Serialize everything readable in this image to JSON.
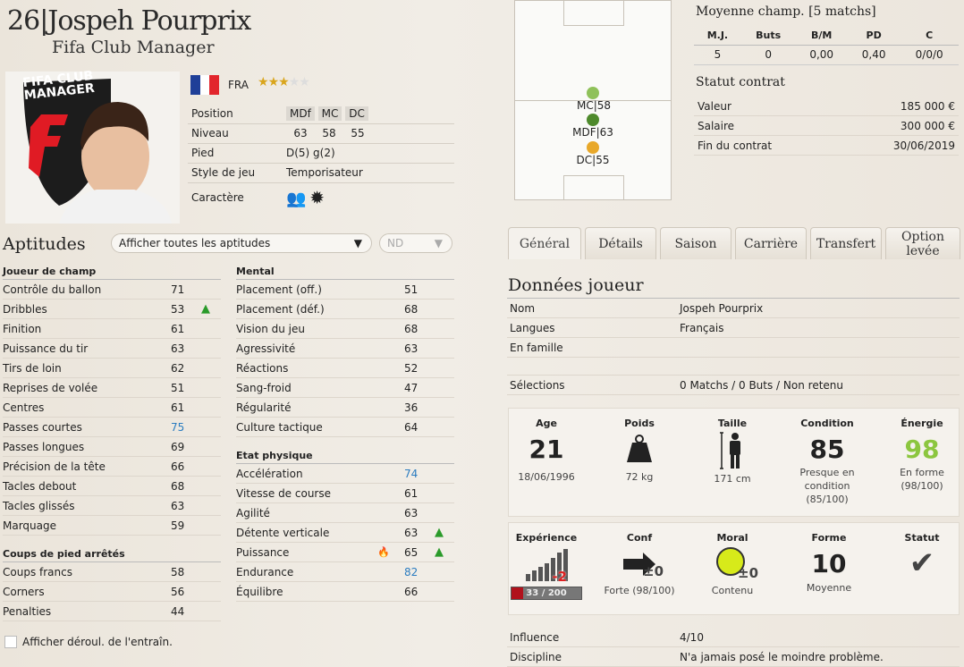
{
  "player": {
    "number": "26",
    "separator": "|",
    "name": "Jospeh Pourprix",
    "club": "Fifa Club Manager",
    "country": "FRA",
    "stars": 3,
    "stars_max": 5,
    "logo_text": [
      "FIFA CLUB",
      "MANAGER"
    ]
  },
  "info": {
    "position_label": "Position",
    "positions": [
      "MDf",
      "MC",
      "DC"
    ],
    "level_label": "Niveau",
    "levels": [
      "63",
      "58",
      "55"
    ],
    "foot_label": "Pied",
    "foot": "D(5) g(2)",
    "style_label": "Style de jeu",
    "style": "Temporisateur",
    "character_label": "Caractère"
  },
  "pitch": {
    "markers": [
      {
        "label": "MC|58",
        "color": "#8fc15a"
      },
      {
        "label": "MDF|63",
        "color": "#4e8a2c"
      },
      {
        "label": "DC|55",
        "color": "#e8a82a"
      }
    ]
  },
  "avg": {
    "title": "Moyenne champ. [5 matchs]",
    "headers": [
      "M.J.",
      "Buts",
      "B/M",
      "PD",
      "C"
    ],
    "values": [
      "5",
      "0",
      "0,00",
      "0,40",
      "0/0/0"
    ]
  },
  "contract": {
    "title": "Statut contrat",
    "rows": [
      {
        "label": "Valeur",
        "value": "185 000 €"
      },
      {
        "label": "Salaire",
        "value": "300 000 €"
      },
      {
        "label": "Fin du contrat",
        "value": "30/06/2019"
      }
    ]
  },
  "aptitudes": {
    "title": "Aptitudes",
    "filter": "Afficher toutes les aptitudes",
    "filter2": "ND",
    "toggle_label": "Afficher déroul. de l'entraîn."
  },
  "field_player": {
    "title": "Joueur de champ",
    "items": [
      {
        "label": "Contrôle du ballon",
        "value": "71"
      },
      {
        "label": "Dribbles",
        "value": "53",
        "arrow": "▲"
      },
      {
        "label": "Finition",
        "value": "61"
      },
      {
        "label": "Puissance du tir",
        "value": "63"
      },
      {
        "label": "Tirs de loin",
        "value": "62"
      },
      {
        "label": "Reprises de volée",
        "value": "51"
      },
      {
        "label": "Centres",
        "value": "61"
      },
      {
        "label": "Passes courtes",
        "value": "75",
        "hl": true
      },
      {
        "label": "Passes longues",
        "value": "69"
      },
      {
        "label": "Précision de la tête",
        "value": "66"
      },
      {
        "label": "Tacles debout",
        "value": "68"
      },
      {
        "label": "Tacles glissés",
        "value": "63"
      },
      {
        "label": "Marquage",
        "value": "59"
      }
    ]
  },
  "set_pieces": {
    "title": "Coups de pied arrêtés",
    "items": [
      {
        "label": "Coups francs",
        "value": "58"
      },
      {
        "label": "Corners",
        "value": "56"
      },
      {
        "label": "Penalties",
        "value": "44"
      }
    ]
  },
  "mental": {
    "title": "Mental",
    "items": [
      {
        "label": "Placement (off.)",
        "value": "51"
      },
      {
        "label": "Placement (déf.)",
        "value": "68"
      },
      {
        "label": "Vision du jeu",
        "value": "68"
      },
      {
        "label": "Agressivité",
        "value": "63"
      },
      {
        "label": "Réactions",
        "value": "52"
      },
      {
        "label": "Sang-froid",
        "value": "47"
      },
      {
        "label": "Régularité",
        "value": "36"
      },
      {
        "label": "Culture tactique",
        "value": "64"
      }
    ]
  },
  "physical": {
    "title": "Etat physique",
    "items": [
      {
        "label": "Accélération",
        "value": "74",
        "hl": true
      },
      {
        "label": "Vitesse de course",
        "value": "61"
      },
      {
        "label": "Agilité",
        "value": "63"
      },
      {
        "label": "Détente verticale",
        "value": "63",
        "arrow": "▲"
      },
      {
        "label": "Puissance",
        "value": "65",
        "arrow": "▲",
        "flame": true
      },
      {
        "label": "Endurance",
        "value": "82",
        "hl": true
      },
      {
        "label": "Équilibre",
        "value": "66"
      }
    ]
  },
  "tabs": [
    "Général",
    "Détails",
    "Saison",
    "Carrière",
    "Transfert",
    "Option levée"
  ],
  "data": {
    "title": "Données joueur",
    "rows": [
      {
        "label": "Nom",
        "value": "Jospeh Pourprix"
      },
      {
        "label": "Langues",
        "value": "Français"
      },
      {
        "label": "En famille",
        "value": ""
      }
    ],
    "selections_label": "Sélections",
    "selections": "0 Matchs / 0 Buts / Non retenu"
  },
  "stats1": {
    "age_t": "Age",
    "age": "21",
    "dob": "18/06/1996",
    "weight_t": "Poids",
    "weight": "72 kg",
    "height_t": "Taille",
    "height": "171 cm",
    "cond_t": "Condition",
    "cond": "85",
    "cond_desc": "Presque en condition (85/100)",
    "energy_t": "Énergie",
    "energy": "98",
    "energy_desc": "En forme (98/100)",
    "energy_color": "#8cc63f"
  },
  "stats2": {
    "exp_t": "Expérience",
    "exp_delta": "-2",
    "exp_bar": "33 / 200",
    "exp_fraction": 0.165,
    "conf_t": "Conf",
    "conf_delta": "±0",
    "conf_desc": "Forte (98/100)",
    "moral_t": "Moral",
    "moral_delta": "±0",
    "moral_desc": "Contenu",
    "form_t": "Forme",
    "form": "10",
    "form_desc": "Moyenne",
    "status_t": "Statut",
    "status_icon": "checkmark-icon"
  },
  "misc": [
    {
      "label": "Influence",
      "value": "4/10"
    },
    {
      "label": "Discipline",
      "value": "N'a jamais posé le moindre problème."
    }
  ]
}
